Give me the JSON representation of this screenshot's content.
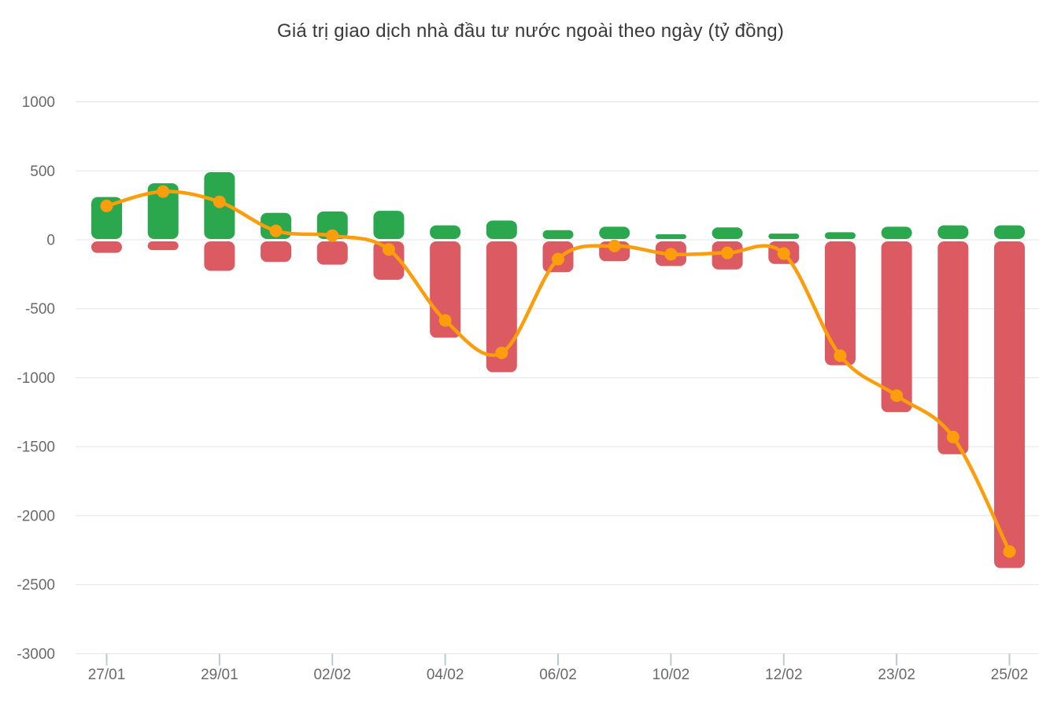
{
  "chart_data": {
    "type": "bar",
    "subtype": "combo-bar-line",
    "title": "Giá trị giao dịch nhà đầu tư nước ngoài theo ngày (tỷ đồng)",
    "unit": "tỷ đồng",
    "categories": [
      "27/01",
      "",
      "29/01",
      "",
      "02/02",
      "",
      "04/02",
      "",
      "06/02",
      "",
      "10/02",
      "",
      "12/02",
      "",
      "23/02",
      "",
      "25/02"
    ],
    "x_tick_labels": [
      "27/01",
      "29/01",
      "02/02",
      "04/02",
      "06/02",
      "10/02",
      "12/02",
      "23/02",
      "25/02"
    ],
    "series": [
      {
        "name": "buy-value-green-bars",
        "type": "bar",
        "color": "#2ba84d",
        "values": [
          310,
          410,
          490,
          195,
          205,
          210,
          105,
          140,
          70,
          95,
          40,
          90,
          45,
          55,
          95,
          105,
          105
        ]
      },
      {
        "name": "sell-value-red-bars",
        "type": "bar",
        "color": "#dc5b63",
        "values": [
          -95,
          -75,
          -225,
          -160,
          -180,
          -290,
          -710,
          -960,
          -235,
          -155,
          -190,
          -215,
          -175,
          -910,
          -1250,
          -1555,
          -2380
        ]
      },
      {
        "name": "net-value-orange-line",
        "type": "line",
        "color": "#fc9d0b",
        "values": [
          245,
          350,
          275,
          65,
          30,
          -70,
          -585,
          -820,
          -140,
          -45,
          -105,
          -95,
          -100,
          -840,
          -1130,
          -1430,
          -2260
        ]
      }
    ],
    "y_ticks": [
      1000,
      500,
      0,
      -500,
      -1000,
      -1500,
      -2000,
      -2500,
      -3000
    ],
    "ylim": [
      -3000,
      1000
    ],
    "grid": true,
    "legend": "none",
    "palette": {
      "grid_line": "#e4e4e4",
      "x_tick_mark": "#bccad4",
      "axis_label": "#6a6a6a",
      "title_text": "#3a3a3a",
      "background": "#ffffff"
    }
  }
}
